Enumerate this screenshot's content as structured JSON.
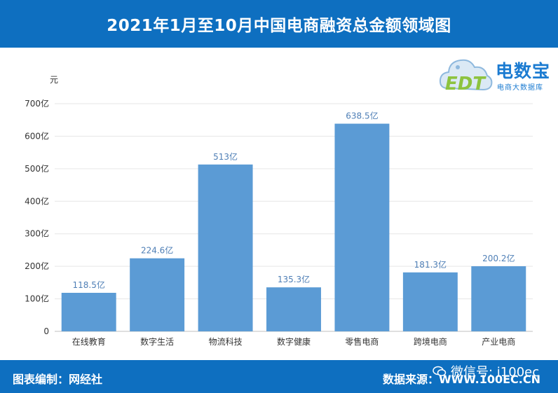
{
  "header": {
    "title": "2021年1月至10月中国电商融资总金额领域图"
  },
  "logo": {
    "word": "电数宝",
    "sub": "电商大数据库",
    "badge": "EDT"
  },
  "footer": {
    "left": "图表编制：网经社",
    "right": "数据来源：WWW.100EC.CN",
    "wechat": "微信号: i100ec"
  },
  "colors": {
    "bar": "#5b9bd5",
    "label": "#4f7fb6",
    "banner": "#0e6fc0"
  },
  "chart_data": {
    "type": "bar",
    "title": "2021年1月至10月中国电商融资总金额领域图",
    "ylabel": "元",
    "xlabel": "",
    "categories": [
      "在线教育",
      "数字生活",
      "物流科技",
      "数字健康",
      "零售电商",
      "跨境电商",
      "产业电商"
    ],
    "values": [
      118.5,
      224.6,
      513,
      135.3,
      638.5,
      181.3,
      200.2
    ],
    "value_labels": [
      "118.5亿",
      "224.6亿",
      "513亿",
      "135.3亿",
      "638.5亿",
      "181.3亿",
      "200.2亿"
    ],
    "ylim": [
      0,
      700
    ],
    "y_ticks": [
      0,
      100,
      200,
      300,
      400,
      500,
      600,
      700
    ],
    "y_tick_labels": [
      "0",
      "100亿",
      "200亿",
      "300亿",
      "400亿",
      "500亿",
      "600亿",
      "700亿"
    ],
    "grid": true,
    "legend": "none"
  }
}
